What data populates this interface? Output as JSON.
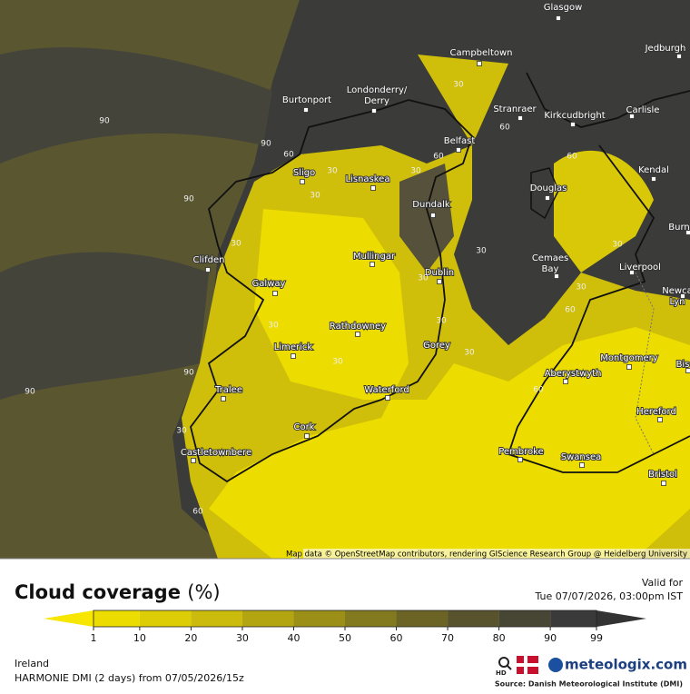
{
  "map": {
    "cities": [
      {
        "lines": [
          "Glasgow"
        ]
      },
      {
        "lines": [
          "Campbeltown"
        ]
      },
      {
        "lines": [
          "Jedburgh"
        ]
      },
      {
        "lines": [
          "Burtonport"
        ]
      },
      {
        "lines": [
          "Londonderry/",
          "Derry"
        ]
      },
      {
        "lines": [
          "Stranraer"
        ]
      },
      {
        "lines": [
          "Kirkcudbright"
        ]
      },
      {
        "lines": [
          "Carlisle"
        ]
      },
      {
        "lines": [
          "Belfast"
        ]
      },
      {
        "lines": [
          "Sligo"
        ]
      },
      {
        "lines": [
          "Lisnaskea"
        ]
      },
      {
        "lines": [
          "Kendal"
        ]
      },
      {
        "lines": [
          "Douglas"
        ]
      },
      {
        "lines": [
          "Dundalk"
        ]
      },
      {
        "lines": [
          "Clifden"
        ]
      },
      {
        "lines": [
          "Mullingar"
        ]
      },
      {
        "lines": [
          "Cemaes",
          "Bay"
        ]
      },
      {
        "lines": [
          "Liverpool"
        ]
      },
      {
        "lines": [
          "Dublin"
        ]
      },
      {
        "lines": [
          "Galway"
        ]
      },
      {
        "lines": [
          "Newca",
          "Lyn"
        ]
      },
      {
        "lines": [
          "Rathdowney"
        ]
      },
      {
        "lines": [
          "Limerick"
        ]
      },
      {
        "lines": [
          "Gorey"
        ]
      },
      {
        "lines": [
          "Montgomery"
        ]
      },
      {
        "lines": [
          "Bis"
        ]
      },
      {
        "lines": [
          "Aberystwyth"
        ]
      },
      {
        "lines": [
          "Waterford"
        ]
      },
      {
        "lines": [
          "Tralee"
        ]
      },
      {
        "lines": [
          "Hereford"
        ]
      },
      {
        "lines": [
          "Cork"
        ]
      },
      {
        "lines": [
          "Castletownbere"
        ]
      },
      {
        "lines": [
          "Pembroke"
        ]
      },
      {
        "lines": [
          "Swansea"
        ]
      },
      {
        "lines": [
          "Bristol"
        ]
      },
      {
        "lines": [
          "Burn"
        ]
      }
    ],
    "contour_labels": [
      90,
      90,
      90,
      90,
      90,
      60,
      60,
      60,
      60,
      60,
      60,
      60,
      30,
      30,
      30,
      30,
      30,
      30,
      30,
      30,
      30,
      30,
      30,
      30,
      30,
      30,
      30
    ],
    "attribution": "Map data © OpenStreetMap contributors, rendering GIScience Research Group @ Heidelberg University"
  },
  "header": {
    "title": "Cloud coverage",
    "unit": "(%)",
    "valid_label": "Valid for",
    "valid_time": "Tue 07/07/2026, 03:00pm IST"
  },
  "legend": {
    "ticks": [
      1,
      10,
      20,
      30,
      40,
      50,
      60,
      70,
      80,
      90,
      99
    ],
    "colors": [
      "#f7e600",
      "#ecdc00",
      "#dccd06",
      "#cabb0c",
      "#b3a512",
      "#9b8f18",
      "#83791e",
      "#6c6424",
      "#58532c",
      "#474634",
      "#3a3a3a",
      "#333333"
    ]
  },
  "footer": {
    "region": "Ireland",
    "model": "HARMONIE DMI (2 days) from 07/05/2026/15z",
    "brand": "meteologix.com",
    "hd": "HD",
    "source": "Source: Danish Meteorological Institute (DMI)"
  }
}
